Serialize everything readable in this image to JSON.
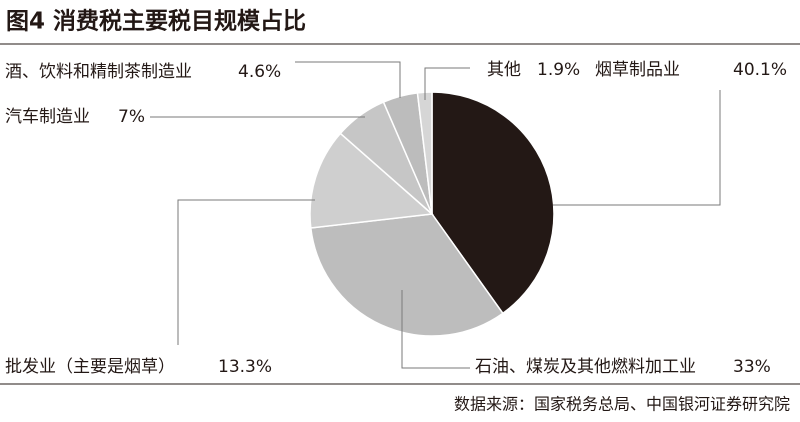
{
  "chart_data": {
    "type": "pie",
    "title": "图4 消费税主要税目规模占比",
    "source": "数据来源：国家税务总局、中国银河证券研究院",
    "categories": [
      "烟草制品业",
      "石油、煤炭及其他燃料加工业",
      "批发业（主要是烟草）",
      "汽车制造业",
      "酒、饮料和精制茶制造业",
      "其他"
    ],
    "values": [
      40.1,
      33,
      13.3,
      7,
      4.6,
      1.9
    ],
    "value_labels": [
      "40.1%",
      "33%",
      "13.3%",
      "7%",
      "4.6%",
      "1.9%"
    ],
    "colors": [
      "#231815",
      "#bdbdbd",
      "#cfcfcf",
      "#c6c6c6",
      "#bcbcbc",
      "#d6d6d6"
    ]
  }
}
